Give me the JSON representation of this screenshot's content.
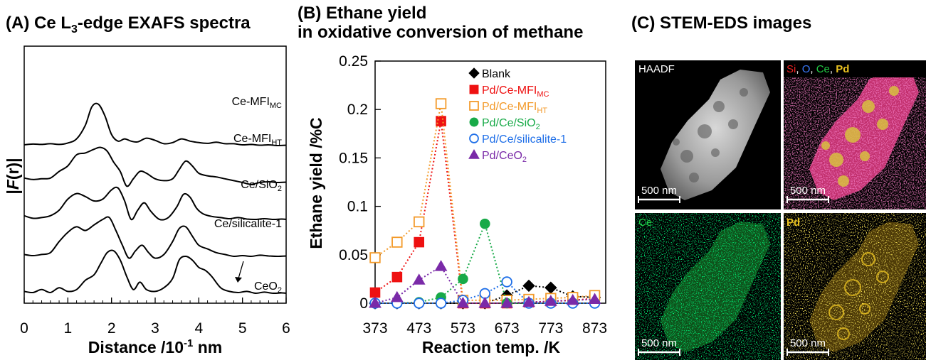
{
  "panels": {
    "a_title_prefix": "(A) Ce L",
    "a_title_sub": "3",
    "a_title_suffix": "-edge EXAFS spectra",
    "b_title_line1": "(B) Ethane yield",
    "b_title_line2": "in oxidative conversion of methane",
    "c_title": "(C) STEM-EDS images"
  },
  "colors": {
    "blank": "#000000",
    "pd_ce_mfi_mc": "#ee1111",
    "pd_ce_mfi_ht": "#f39a2a",
    "pd_ce_sio2": "#18aa48",
    "pd_ce_silicalite": "#1f6fe8",
    "pd_ceo2": "#7a2aa8",
    "tag_si": "#ee2222",
    "tag_o": "#3a7bff",
    "tag_ce": "#22cc44",
    "tag_pd": "#e8c020"
  },
  "chart_data": [
    {
      "type": "line",
      "xlabel": "Distance /10",
      "xlabel_sup": "-1",
      "xlabel_suffix": " nm",
      "ylabel_prefix": "|",
      "ylabel_var": "F",
      "ylabel_paren": "(r)",
      "ylabel_suffix": "|",
      "xlim": [
        0,
        6
      ],
      "xticks": [
        "0",
        "1",
        "2",
        "3",
        "4",
        "5",
        "6"
      ],
      "yticks": [],
      "grid": false,
      "series": [
        {
          "name": "Ce-MFI",
          "name_sub": "MC",
          "offset": 4.0,
          "x": [
            0.0,
            0.2,
            0.4,
            0.6,
            0.8,
            1.0,
            1.2,
            1.4,
            1.55,
            1.7,
            1.85,
            2.0,
            2.15,
            2.3,
            2.45,
            2.6,
            2.8,
            3.0,
            3.2,
            3.4,
            3.6,
            3.8,
            4.0,
            4.2,
            4.4,
            4.6,
            4.8,
            5.0,
            5.2,
            5.4,
            5.6,
            5.8,
            6.0
          ],
          "y": [
            0.02,
            0.04,
            0.03,
            0.05,
            0.03,
            0.07,
            0.18,
            0.55,
            1.05,
            1.12,
            0.8,
            0.3,
            0.12,
            0.18,
            0.12,
            0.1,
            0.2,
            0.14,
            0.05,
            0.08,
            0.18,
            0.12,
            0.08,
            0.06,
            0.09,
            0.05,
            0.05,
            0.02,
            0.03,
            0.01,
            0.02,
            0.0,
            0.01
          ]
        },
        {
          "name": "Ce-MFI",
          "name_sub": "HT",
          "offset": 3.0,
          "x": [
            0.0,
            0.2,
            0.4,
            0.6,
            0.8,
            1.0,
            1.2,
            1.4,
            1.6,
            1.75,
            1.9,
            2.05,
            2.2,
            2.35,
            2.5,
            2.65,
            2.8,
            3.0,
            3.2,
            3.4,
            3.55,
            3.7,
            3.85,
            4.0,
            4.2,
            4.4,
            4.6,
            4.8,
            5.0,
            5.2,
            5.4,
            5.6,
            5.8,
            6.0
          ],
          "y": [
            0.12,
            0.08,
            0.1,
            0.12,
            0.3,
            0.45,
            0.75,
            0.8,
            0.9,
            0.95,
            0.85,
            0.55,
            0.3,
            -0.1,
            0.1,
            0.3,
            0.25,
            0.1,
            0.05,
            0.1,
            0.35,
            0.58,
            0.45,
            0.25,
            0.18,
            0.15,
            0.1,
            0.05,
            0.0,
            -0.05,
            0.0,
            0.02,
            0.0,
            0.01
          ]
        },
        {
          "name": "Ce/SiO",
          "name_sub": "2",
          "offset": 2.0,
          "x": [
            0.0,
            0.2,
            0.4,
            0.6,
            0.8,
            1.0,
            1.2,
            1.4,
            1.6,
            1.8,
            2.0,
            2.15,
            2.3,
            2.45,
            2.6,
            2.75,
            2.9,
            3.1,
            3.3,
            3.5,
            3.65,
            3.8,
            3.95,
            4.1,
            4.3,
            4.5,
            4.7,
            4.9,
            5.1,
            5.3,
            5.5,
            5.7,
            5.9,
            6.0
          ],
          "y": [
            0.1,
            0.03,
            0.05,
            0.1,
            0.25,
            0.55,
            0.7,
            0.62,
            0.5,
            0.55,
            0.8,
            0.85,
            0.5,
            0.0,
            0.25,
            0.45,
            0.22,
            0.0,
            0.05,
            0.35,
            0.68,
            0.6,
            0.3,
            0.15,
            0.08,
            0.05,
            0.02,
            0.05,
            0.01,
            0.0,
            0.02,
            0.0,
            0.01,
            0.0
          ]
        },
        {
          "name": "Ce/silicalite-1",
          "name_sub": "",
          "offset": 1.0,
          "x": [
            0.0,
            0.2,
            0.4,
            0.6,
            0.8,
            1.0,
            1.2,
            1.4,
            1.6,
            1.8,
            1.95,
            2.1,
            2.25,
            2.4,
            2.55,
            2.7,
            2.85,
            3.0,
            3.2,
            3.4,
            3.55,
            3.7,
            3.85,
            4.0,
            4.2,
            4.4,
            4.6,
            4.8,
            5.0,
            5.2,
            5.4,
            5.6,
            5.8,
            6.0
          ],
          "y": [
            0.05,
            0.02,
            0.05,
            0.1,
            0.4,
            0.65,
            0.8,
            0.7,
            0.85,
            1.0,
            1.05,
            0.7,
            0.3,
            -0.05,
            0.15,
            0.3,
            0.1,
            -0.05,
            0.05,
            0.4,
            0.75,
            0.8,
            0.55,
            0.3,
            0.2,
            0.1,
            0.05,
            0.0,
            0.02,
            0.0,
            0.03,
            0.01,
            0.0,
            0.01
          ]
        },
        {
          "name": "CeO",
          "name_sub": "2",
          "offset": 0.0,
          "x": [
            0.0,
            0.2,
            0.4,
            0.6,
            0.8,
            1.0,
            1.2,
            1.4,
            1.6,
            1.75,
            1.9,
            2.05,
            2.2,
            2.35,
            2.5,
            2.65,
            2.8,
            3.0,
            3.2,
            3.4,
            3.55,
            3.7,
            3.85,
            4.0,
            4.15,
            4.3,
            4.5,
            4.7,
            4.9,
            5.1,
            5.3,
            5.5,
            5.7,
            5.9,
            6.0
          ],
          "y": [
            0.05,
            0.02,
            0.1,
            0.02,
            0.15,
            0.05,
            0.1,
            0.35,
            0.5,
            0.8,
            1.1,
            1.15,
            0.9,
            0.45,
            0.1,
            0.3,
            0.1,
            0.05,
            0.15,
            0.4,
            0.9,
            1.0,
            0.9,
            0.7,
            0.62,
            0.45,
            0.15,
            0.05,
            0.02,
            0.05,
            0.0,
            0.03,
            0.0,
            0.01,
            0.0
          ]
        }
      ],
      "annotation": "Ce/silicalite-1"
    },
    {
      "type": "scatter",
      "xlabel": "Reaction temp. /K",
      "ylabel": "Ethane yield /%C",
      "xlim": [
        373,
        898
      ],
      "ylim": [
        0,
        0.25
      ],
      "xticks": [
        "373",
        "473",
        "573",
        "673",
        "773",
        "873"
      ],
      "yticks": [
        "0",
        "0.05",
        "0.1",
        "0.15",
        "0.2",
        "0.25"
      ],
      "grid": false,
      "legend": "top-right",
      "series": [
        {
          "name": "Blank",
          "name_sub": "",
          "marker": "diamond",
          "filled": true,
          "color": "#000000",
          "x": [
            373,
            423,
            473,
            523,
            573,
            623,
            673,
            723,
            773,
            823,
            873
          ],
          "y": [
            0,
            0,
            0,
            0,
            0,
            0,
            0.008,
            0.018,
            0.016,
            0.007,
            0.006
          ]
        },
        {
          "name": "Pd/Ce-MFI",
          "name_sub": "MC",
          "marker": "square",
          "filled": true,
          "color": "#ee1111",
          "x": [
            373,
            423,
            473,
            523,
            573,
            623,
            673,
            723,
            773,
            823,
            873
          ],
          "y": [
            0.011,
            0.027,
            0.063,
            0.188,
            0,
            0,
            0,
            0.001,
            0.002,
            0.003,
            0.005
          ]
        },
        {
          "name": "Pd/Ce-MFI",
          "name_sub": "HT",
          "marker": "square",
          "filled": false,
          "color": "#f39a2a",
          "x": [
            373,
            423,
            473,
            523,
            573,
            623,
            673,
            723,
            773,
            823,
            873
          ],
          "y": [
            0.047,
            0.063,
            0.084,
            0.206,
            0.003,
            0.003,
            0.003,
            0.004,
            0.005,
            0.006,
            0.008
          ]
        },
        {
          "name": "Pd/Ce/SiO",
          "name_sub": "2",
          "marker": "circle",
          "filled": true,
          "color": "#18aa48",
          "x": [
            373,
            423,
            473,
            523,
            573,
            623,
            673,
            723,
            773,
            823,
            873
          ],
          "y": [
            0,
            0,
            0.001,
            0.006,
            0.025,
            0.082,
            0,
            0,
            0,
            0,
            0
          ]
        },
        {
          "name": "Pd/Ce/silicalite-1",
          "name_sub": "",
          "marker": "circle",
          "filled": false,
          "color": "#1f6fe8",
          "x": [
            373,
            423,
            473,
            523,
            573,
            623,
            673,
            723,
            773,
            823,
            873
          ],
          "y": [
            0,
            0,
            0,
            0,
            0.003,
            0.01,
            0.022,
            0,
            0,
            0,
            0
          ]
        },
        {
          "name": "Pd/CeO",
          "name_sub": "2",
          "marker": "triangle",
          "filled": true,
          "color": "#7a2aa8",
          "x": [
            373,
            423,
            473,
            523,
            573,
            623,
            673,
            723,
            773,
            823,
            873
          ],
          "y": [
            0,
            0.006,
            0.024,
            0.038,
            0,
            0,
            0,
            0.001,
            0.002,
            0.003,
            0.004
          ]
        }
      ]
    }
  ],
  "stem": {
    "haadf_tag": "HAADF",
    "overlay_si": "Si",
    "overlay_o": "O",
    "overlay_ce": "Ce",
    "overlay_pd": "Pd",
    "ce_tag": "Ce",
    "pd_tag": "Pd",
    "scale_text": "500 nm"
  }
}
